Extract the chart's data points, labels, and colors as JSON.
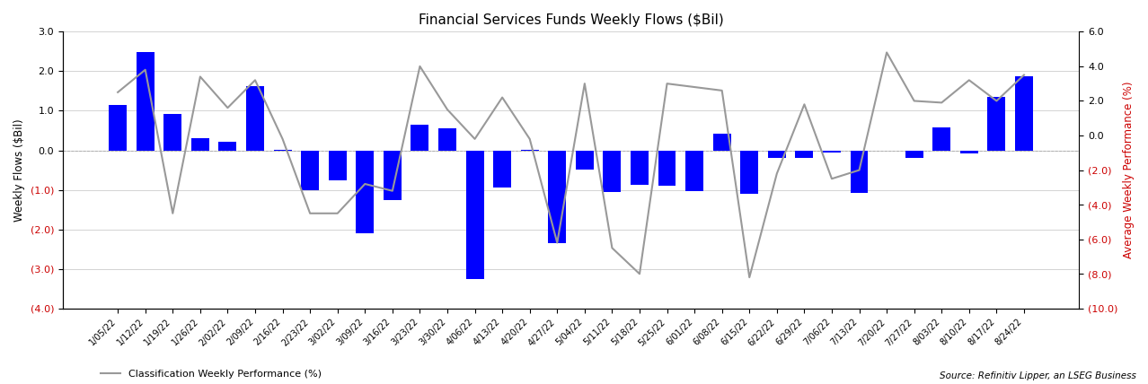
{
  "title": "Financial Services Funds Weekly Flows ($Bil)",
  "ylabel_left": "Weekly Flows ($Bil)",
  "ylabel_right": "Average Weekly Performance (%)",
  "legend_label": "Classification Weekly Performance (%)",
  "source_text": "Source: Refinitiv Lipper, an LSEG Business",
  "categories": [
    "1/05/22",
    "1/12/22",
    "1/19/22",
    "1/26/22",
    "2/02/22",
    "2/09/22",
    "2/16/22",
    "2/23/22",
    "3/02/22",
    "3/09/22",
    "3/16/22",
    "3/23/22",
    "3/30/22",
    "4/06/22",
    "4/13/22",
    "4/20/22",
    "4/27/22",
    "5/04/22",
    "5/11/22",
    "5/18/22",
    "5/25/22",
    "6/01/22",
    "6/08/22",
    "6/15/22",
    "6/22/22",
    "6/29/22",
    "7/06/22",
    "7/13/22",
    "7/20/22",
    "7/27/22",
    "8/03/22",
    "8/10/22",
    "8/17/22",
    "8/24/22"
  ],
  "bar_values": [
    1.15,
    2.48,
    0.93,
    0.3,
    0.22,
    1.62,
    0.02,
    -1.0,
    -0.75,
    -2.1,
    -1.25,
    0.65,
    0.55,
    -3.25,
    -0.93,
    0.02,
    -2.35,
    -0.48,
    -1.05,
    -0.88,
    -0.9,
    -1.02,
    0.43,
    -1.1,
    -0.2,
    -0.2,
    -0.05,
    -1.08,
    -0.02,
    -0.2,
    0.58,
    -0.08,
    1.35,
    1.88
  ],
  "line_values": [
    2.5,
    3.8,
    -4.5,
    3.4,
    1.6,
    3.2,
    -0.2,
    -4.5,
    -4.5,
    -2.8,
    -3.2,
    4.0,
    1.5,
    -0.2,
    2.2,
    -0.2,
    -6.2,
    3.0,
    -6.5,
    -8.0,
    3.0,
    2.8,
    2.6,
    -8.2,
    -2.2,
    1.8,
    -2.5,
    -2.0,
    4.8,
    2.0,
    1.9,
    3.2,
    2.0,
    3.5
  ],
  "bar_color": "#0000ff",
  "line_color": "#999999",
  "ylim_left": [
    -4.0,
    3.0
  ],
  "ylim_right": [
    -10.0,
    6.0
  ],
  "yticks_left": [
    3.0,
    2.0,
    1.0,
    0.0,
    -1.0,
    -2.0,
    -3.0,
    -4.0
  ],
  "yticks_right": [
    6.0,
    4.0,
    2.0,
    0.0,
    -2.0,
    -4.0,
    -6.0,
    -8.0,
    -10.0
  ],
  "negative_tick_color": "#cc0000",
  "positive_tick_color": "#000000",
  "background_color": "#ffffff",
  "grid_color": "#cccccc"
}
